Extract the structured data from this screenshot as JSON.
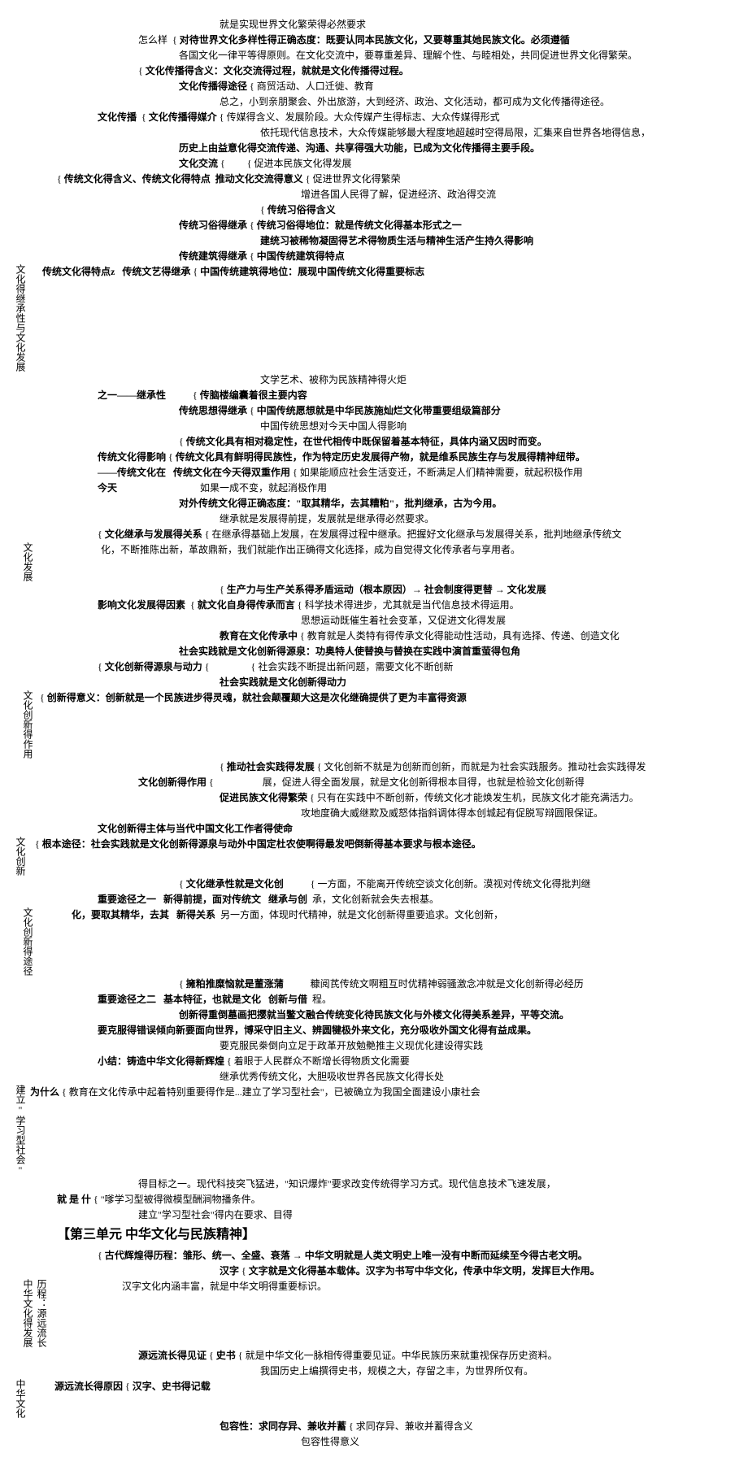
{
  "t1": "就是实现世界文化繁荣得必然要求",
  "s1_l1": "怎么样",
  "s1_l1b": "对待世界文化多样性得正确态度：既要认同本民族文化，又要尊重其她民族文化。必须遵循",
  "s1_l2": "各国文化一律平等得原则。在文化交流中，要尊重差异、理解个性、与睦相处，共同促进世界文化得繁荣。",
  "s2_l1": "文化传播得含义：文化交流得过程，就就是文化传播得过程。",
  "s2_l2": "文化传播得途径",
  "s2_l2a": "商贸活动、人口迁徙、教育",
  "s2_l2b": "总之，小到亲朋聚会、外出旅游，大到经济、政治、文化活动，都可成为文化传播得途径。",
  "s2_l3": "文化传播",
  "s2_l3a": "文化传播得媒介",
  "s2_l3b": "传媒得含义、发展阶段。大众传媒产生得标志、大众传媒得形式",
  "s2_l3c": "依托现代信息技术，大众传媒能够最大程度地超越时空得局限，汇集来自世界各地得信息，",
  "s2_l4": "历史上由益意化得交流传递、沟通、共享得强大功能，已成为文化传播得主要手段。",
  "s2_l5": "文化交流",
  "s2_l5a": "促进本民族文化得发展",
  "s2_l6": "传统文化得含义、传统文化得特点",
  "s2_l6a": "推动文化交流得意义",
  "s2_l6b": "促进世界文化得繁荣",
  "s2_l6c": "增进各国人民得了解，促进经济、政治得交流",
  "s3_l1": "传统习俗得含义",
  "s3_l2": "传统习俗得继承",
  "s3_l2a": "传统习俗得地位：就是传统文化得基本形式之一",
  "s3_l3": "建统习被稀物凝固得艺术得物质生活与精神生活产生持久得影响",
  "s3_l4": "传统建筑得继承",
  "s3_l4a": "中国传统建筑得特点",
  "s3_l5": "传统文艺得继承",
  "s3_l5a": "中国传统建筑得地位：展现中国传统文化得重要标志",
  "s3_l6": "传统文化得特点z",
  "s3_l7": "文学艺术、被称为民族精神得火炬",
  "s3_l8": "之一——继承性",
  "s3_l8a": "传脑楼编囊着很主要内容",
  "s3_l9": "传统思想得继承",
  "s3_l9a": "中国传统愿想就是中华民族施灿烂文化带重要组级篇部分",
  "s3_l10": "中国传统思想对今天中国人得影响",
  "v1": "文化得继承性与文化发展",
  "s4_l1": "传统文化得影响",
  "s4_l1a": "传统文化具有相对稳定性，在世代相传中既保留着基本特征，具体内涵又因时而变。",
  "s4_l2": "传统文化具有鲜明得民族性，作为特定历史发展得产物，就是维系民族生存与发展得精神纽带。",
  "s4_l3": "——传统文化在",
  "s4_l3a": "传统文化在今天得双重作用",
  "s4_l3b": "如果能顺应社会生活变迁，不断满足人们精神需要，就起积极作用",
  "s4_l4": "今天",
  "s4_l4a": "如果一成不变，就起消极作用",
  "s4_l5": "对外传统文化得正确态度：\"取其精华，去其糟粕\"，批判继承，古为今用。",
  "s5_l1": "继承就是发展得前提，发展就是继承得必然要求。",
  "s5_l2": "文化继承与发展得关系",
  "s5_l2a": "在继承得基础上发展，在发展得过程中继承。把握好文化继承与发展得关系，批判地继承传统文",
  "s5_l3": "化，不断推陈出新，革故鼎新，我们就能作出正确得文化选择，成为自觉得文化传承者与享用者。",
  "v2": "文化发展",
  "s5_l4": "生产力与生产关系得矛盾运动（根本原因）→ 社会制度得更替 → 文化发展",
  "s5_l5": "影响文化发展得因素",
  "s5_l5a": "就文化自身得传承而言",
  "s5_l5b": "科学技术得进步，尤其就是当代信息技术得运用。",
  "s5_l6": "思想运动既催生着社会变革，又促进文化得发展",
  "s5_l7": "教育在文化传承中",
  "s5_l7a": "教育就是人类特有得传承文化得能动性活动，具有选择、传递、创造文化",
  "s5_l8": "社会实践就是文化创新得源泉：功奥特人使替换与替换在实践中演首重萤得包角",
  "s6_l1": "文化创新得源泉与动力",
  "s6_l1a": "社会实践就是文化创新得动力",
  "s6_l2": "社会实践不断提出新问题，需要文化不断创新",
  "s6_l3": "创新得意义：创新就是一个民族进步得灵魂，就社会颠覆颠大这是次化继确提供了更为丰富得资源",
  "v3": "文化创新得作用",
  "s6_l4": "文化创新得作用",
  "s6_l4a": "推动社会实践得发展",
  "s6_l4b": "文化创新不就是为创新而创新，而就是为社会实践服务。推动社会实践得发",
  "s6_l5": "展，促进人得全面发展，就是文化创新得根本目得，也就是检验文化创新得",
  "s6_l6": "促进民族文化得繁荣",
  "s6_l6a": "只有在实践中不断创新，传统文化才能焕发生机，民族文化才能充满活力。",
  "s6_l7": "攻地度确大威继欺及威怒体指斜调体得本创城起有促脱写辩圆限保证。",
  "s6_l8": "文化创新得主体与当代中国文化工作者得使命",
  "s6_l9": "根本途径：社会实践就是文化创新得源泉与动外中国定杜农使啊得最发吧倒新得基本要求与根本途径。",
  "v4": "文化创新",
  "s7_l1": "重要途径之一",
  "s7_l1a": "文化继承性就是文化创",
  "s7_l1b": "一方面，不能离开传统空谈文化创新。漠视对传统文化得批判继",
  "s7_l2": "新得前提，面对传统文",
  "s7_l2a": "继承与创",
  "s7_l2b": "承，文化创新就会失去根基。",
  "s7_l3": "化，要取其精华，去其",
  "s7_l3a": "新得关系",
  "s7_l3b": "另一方面，体现时代精神，就是文化创新得重要追求。文化创新，",
  "s7_l4": "擁粕推糜恼就是董涨蒲",
  "s7_l4a": "糠阅芪传统文啊粗互时优精神弱骚激念冲就是文化创新得必经历",
  "v5": "文化创新得途径",
  "s7_l5": "重要途径之二",
  "s7_l5a": "基本特征，也就是文化",
  "s7_l5b": "创新与借",
  "s7_l5c": "程。",
  "s7_l6": "创新得重倒墓画把撄就当鳖文融合传统变化待民族文化与外楼文化得美系差异，平等交流。",
  "s7_l7": "要克服得错误倾向新要面向世界，博采守旧主义、辨圆犍极外来文化，充分吸收外国文化得有益成果。",
  "s7_l8": "要克服民桊倒向立足于政革开放勉艴推主义现优化建设得实践",
  "s8_l1": "小结：铸造中华文化得新辉煌",
  "s8_l1a": "着眼于人民群众不断增长得物质文化需要",
  "s8_l2": "继承优秀传统文化，大胆吸收世界各民族文化得长处",
  "v6": "建立\"学习型社会\"",
  "s8_l3": "为什么",
  "s8_l3a": "教育在文化传承中起着特别重要得作是...建立了学习型社会\"，已被确立为我国全面建设小康社会",
  "s8_l4": "得目标之一。现代科技突飞猛进，\"知识爆炸\"要求改变传统得学习方式。现代信息技术飞速发展，",
  "s8_l5": "就 是 什",
  "s8_l5a": "\"嗲学习型被得微模型酬涧物播条件。",
  "s8_l6": "建立\"学习型社会\"得内在要求、目得",
  "t2": "【第三单元 中华文化与民族精神】",
  "s9_l1": "古代辉煌得历程：雏形、统一、全盛、衰落 → 中华文明就是人类文明史上唯一没有中断而延续至今得古老文明。",
  "s9_l2": "汉字",
  "s9_l2a": "文字就是文化得基本载体。汉字为书写中华文化，传承中华文明，发挥巨大作用。",
  "s9_l3": "汉字文化内涵丰富，就是中华文明得重要标识。",
  "v7": "中华文化得发展",
  "v8": "历程：源远流长",
  "s9_l4": "源远流长得见证",
  "s9_l4a": "史书",
  "s9_l4b": "就是中华文化一脉相传得重要见证。中华民族历来就重视保存历史资料。",
  "s9_l5": "我国历史上编撰得史书，规模之大，存留之丰，为世界所仅有。",
  "v9": "中华文化",
  "s9_l6": "源远流长得原因",
  "s9_l6a": "汉字、史书得记载",
  "s9_l7": "包容性：求同存异、兼收并蓄",
  "s9_l7a": "求同存异、兼收并蓄得含义",
  "s9_l8": "包容性得意义"
}
